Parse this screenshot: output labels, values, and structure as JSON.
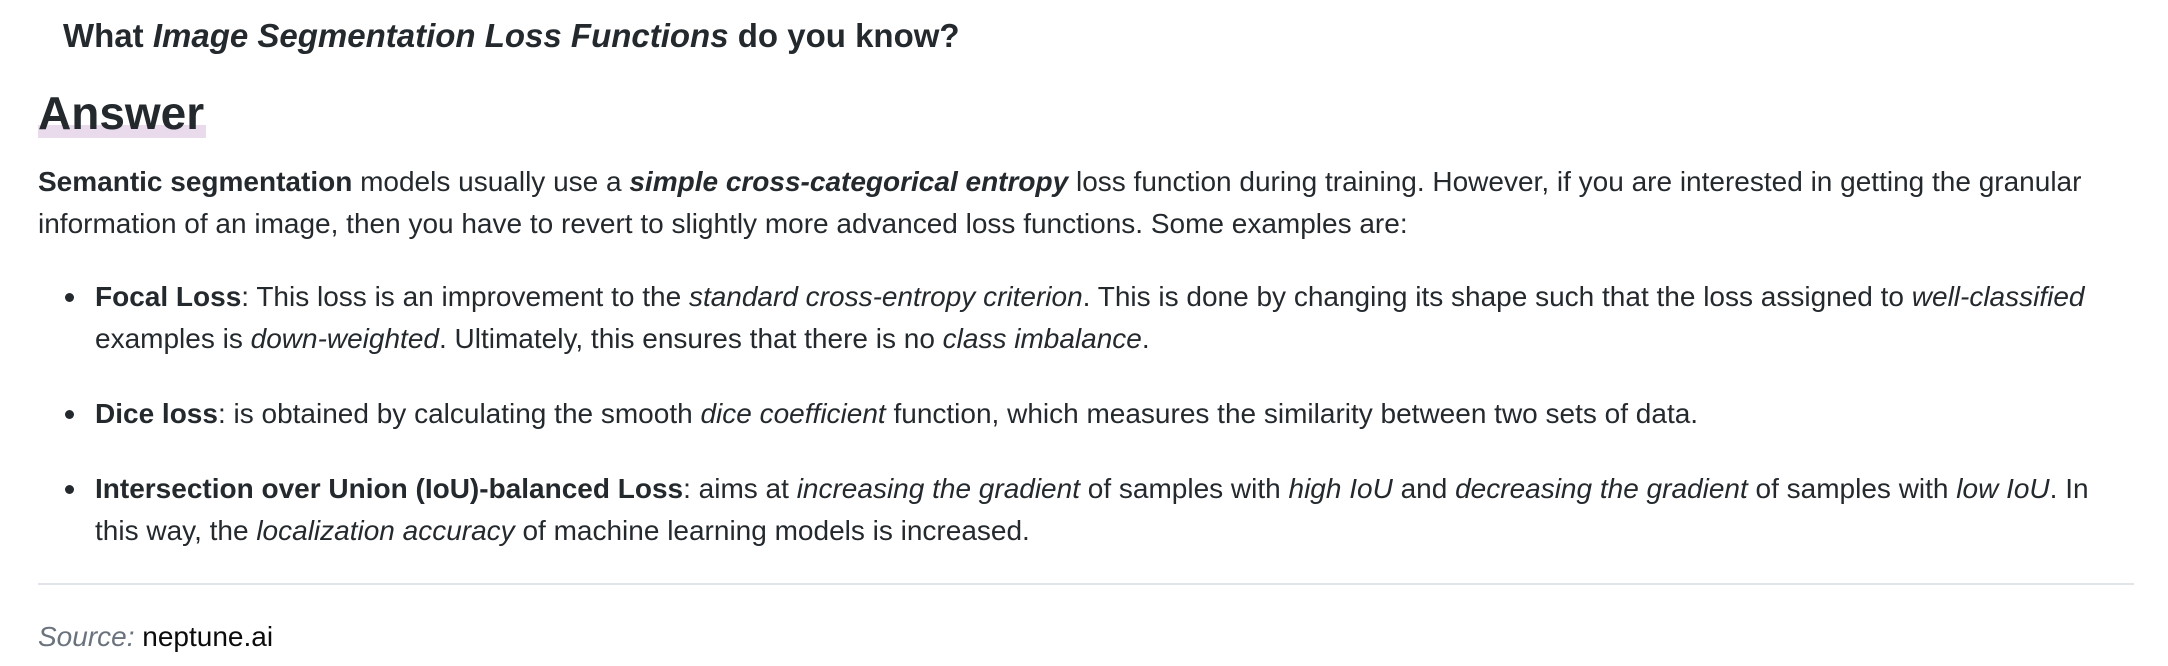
{
  "question": {
    "prefix": "What ",
    "emphasis": "Image Segmentation Loss Functions",
    "suffix": " do you know?"
  },
  "answer_heading": "Answer",
  "intro": {
    "term": "Semantic segmentation",
    "t1": " models usually use a ",
    "loss_name": "simple cross-categorical entropy",
    "t2": " loss function during training. However, if you are interested in getting the granular information of an image, then you have to revert to slightly more advanced loss functions. Some examples are:"
  },
  "bullets": [
    {
      "title": "Focal Loss",
      "segments": [
        {
          "text": ": This loss is an improvement to the ",
          "style": "normal"
        },
        {
          "text": "standard cross-entropy criterion",
          "style": "italic"
        },
        {
          "text": ". This is done by changing its shape such that the loss assigned to ",
          "style": "normal"
        },
        {
          "text": "well-classified",
          "style": "italic"
        },
        {
          "text": " examples is ",
          "style": "normal"
        },
        {
          "text": "down-weighted",
          "style": "italic"
        },
        {
          "text": ". Ultimately, this ensures that there is no ",
          "style": "normal"
        },
        {
          "text": "class imbalance",
          "style": "italic"
        },
        {
          "text": ".",
          "style": "normal"
        }
      ]
    },
    {
      "title": "Dice loss",
      "segments": [
        {
          "text": ": is obtained by calculating the smooth ",
          "style": "normal"
        },
        {
          "text": "dice coefficient",
          "style": "italic"
        },
        {
          "text": " function, which measures the similarity between two sets of data.",
          "style": "normal"
        }
      ]
    },
    {
      "title": "Intersection over Union (IoU)-balanced Loss",
      "segments": [
        {
          "text": ": aims at ",
          "style": "normal"
        },
        {
          "text": "increasing the gradient",
          "style": "italic"
        },
        {
          "text": " of samples with ",
          "style": "normal"
        },
        {
          "text": "high IoU",
          "style": "italic"
        },
        {
          "text": " and ",
          "style": "normal"
        },
        {
          "text": "decreasing the gradient",
          "style": "italic"
        },
        {
          "text": " of samples with ",
          "style": "normal"
        },
        {
          "text": "low IoU",
          "style": "italic"
        },
        {
          "text": ". In this way, the ",
          "style": "normal"
        },
        {
          "text": "localization accuracy",
          "style": "italic"
        },
        {
          "text": " of machine learning models is increased.",
          "style": "normal"
        }
      ]
    }
  ],
  "source": {
    "label": "Source:",
    "link_text": "neptune.ai"
  },
  "colors": {
    "text": "#24292e",
    "muted": "#6a737d",
    "heading_highlight": "#e9dbec",
    "divider": "#e1e4e8"
  }
}
